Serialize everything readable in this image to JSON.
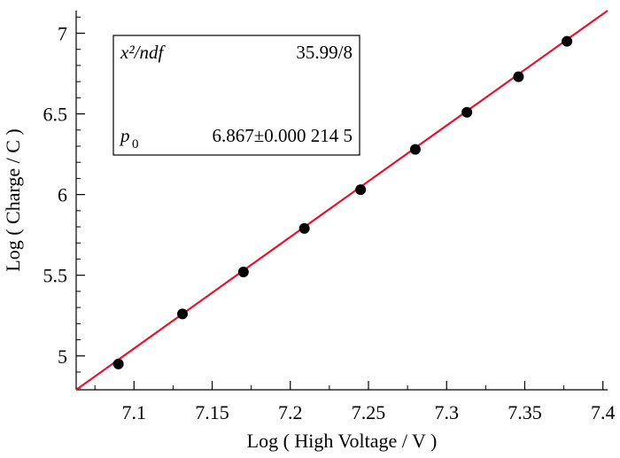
{
  "chart_data": {
    "type": "scatter",
    "xlabel": "Log ( High Voltage / V )",
    "ylabel": "Log ( Charge / C )",
    "xlim": [
      7.063,
      7.403
    ],
    "ylim": [
      4.79,
      7.14
    ],
    "x_ticks": [
      7.1,
      7.15,
      7.2,
      7.25,
      7.3,
      7.35,
      7.4
    ],
    "x_tick_labels": [
      "7.1",
      "7.15",
      "7.2",
      "7.25",
      "7.3",
      "7.35",
      "7.4"
    ],
    "y_ticks": [
      5,
      5.5,
      6,
      6.5,
      7
    ],
    "y_tick_labels": [
      "5",
      "5.5",
      "6",
      "6.5",
      "7"
    ],
    "grid": false,
    "series": [
      {
        "x": [
          7.09,
          7.131,
          7.17,
          7.209,
          7.245,
          7.28,
          7.313,
          7.346,
          7.377
        ],
        "y": [
          4.95,
          5.26,
          5.52,
          5.79,
          6.03,
          6.28,
          6.51,
          6.73,
          6.95
        ],
        "color": "#000000"
      }
    ],
    "fit_line": {
      "x": [
        7.063,
        7.403
      ],
      "y": [
        4.79,
        7.14
      ],
      "color": "#e8112d"
    },
    "stats_box": {
      "chi2_label": "x²/ndf",
      "chi2_value": "35.99/8",
      "param_label": "p",
      "param_subscript": "0",
      "param_value": "6.867±0.000 214 5"
    }
  }
}
